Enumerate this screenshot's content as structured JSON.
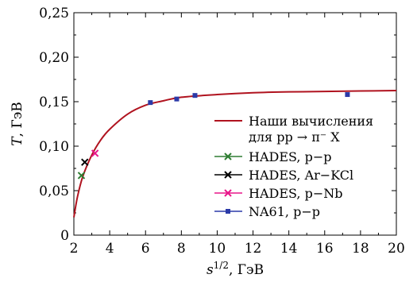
{
  "chart_data": {
    "type": "scatter",
    "title": "",
    "xlabel": "s^{1/2}, ГэВ",
    "xlabel_parts": {
      "base": "s",
      "sup": "1/2",
      "unit": ", ГэВ"
    },
    "ylabel": "T, ГэВ",
    "ylabel_parts": {
      "var": "T",
      "unit": ", ГэВ"
    },
    "xlim": [
      2,
      20
    ],
    "ylim": [
      0,
      0.25
    ],
    "x_ticks": [
      2,
      4,
      6,
      8,
      10,
      12,
      14,
      16,
      18,
      20
    ],
    "x_tick_labels": [
      "2",
      "4",
      "6",
      "8",
      "10",
      "12",
      "14",
      "16",
      "18",
      "20"
    ],
    "y_ticks": [
      0,
      0.05,
      0.1,
      0.15,
      0.2,
      0.25
    ],
    "y_tick_labels": [
      "0",
      "0,05",
      "0,10",
      "0,15",
      "0,20",
      "0,25"
    ],
    "grid": false,
    "legend_position": "lower-right",
    "curve": {
      "name_line1": "Наши вычисления",
      "name_line2": "для pp → π⁻ X",
      "color": "#b0131f",
      "x": [
        2.0,
        2.2,
        2.5,
        3.0,
        3.5,
        4.0,
        5.0,
        6.0,
        7.0,
        8.0,
        10.0,
        12.0,
        14.0,
        16.0,
        18.0,
        20.0
      ],
      "y": [
        0.02,
        0.043,
        0.066,
        0.09,
        0.107,
        0.119,
        0.136,
        0.146,
        0.151,
        0.155,
        0.158,
        0.16,
        0.161,
        0.1615,
        0.162,
        0.1625
      ]
    },
    "series": [
      {
        "name": "HADES, p−p",
        "marker": "x",
        "color": "#2e7d32",
        "x": [
          2.42
        ],
        "y": [
          0.067
        ]
      },
      {
        "name": "HADES, Ar−KCl",
        "marker": "x",
        "color": "#000000",
        "x": [
          2.61
        ],
        "y": [
          0.082
        ]
      },
      {
        "name": "HADES, p−Nb",
        "marker": "x",
        "color": "#e8178a",
        "x": [
          3.18
        ],
        "y": [
          0.092
        ]
      },
      {
        "name": "NA61, p−p",
        "marker": "square",
        "color": "#2b3aa8",
        "x": [
          6.27,
          7.74,
          8.76,
          17.27
        ],
        "y": [
          0.149,
          0.153,
          0.157,
          0.158
        ]
      }
    ]
  }
}
